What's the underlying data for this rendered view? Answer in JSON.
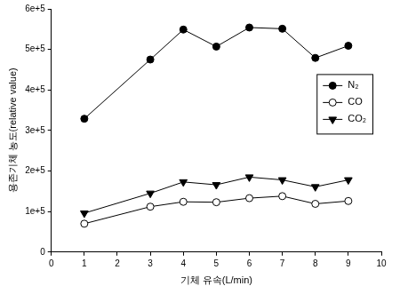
{
  "chart_data": {
    "type": "line",
    "x_label": "기체 유속(L/min)",
    "y_label": "용존기체 농도(relative value)",
    "x": [
      1,
      3,
      4,
      5,
      6,
      7,
      8,
      9
    ],
    "series": [
      {
        "name": "N₂",
        "color": "#000000",
        "marker": "filled_circle",
        "values": [
          329000,
          475000,
          549000,
          507000,
          554000,
          551000,
          479000,
          509000
        ]
      },
      {
        "name": "CO",
        "color": "#000000",
        "marker": "open_circle",
        "values": [
          70000,
          112000,
          124000,
          123000,
          133000,
          138000,
          119000,
          126000
        ]
      },
      {
        "name": "CO₂",
        "color": "#000000",
        "marker": "triangle_down",
        "values": [
          96000,
          145000,
          173000,
          166000,
          185000,
          178000,
          161000,
          178000
        ]
      }
    ],
    "xlim": [
      0,
      10
    ],
    "xticks": [
      0,
      1,
      2,
      3,
      4,
      5,
      6,
      7,
      8,
      9,
      10
    ],
    "ylim": [
      0,
      600000
    ],
    "yticks": [
      0,
      {
        "value": 100000,
        "label": "1e+5"
      },
      {
        "value": 200000,
        "label": "2e+5"
      },
      {
        "value": 300000,
        "label": "3e+5"
      },
      {
        "value": 400000,
        "label": "4e+5"
      },
      {
        "value": 500000,
        "label": "5e+5"
      },
      {
        "value": 600000,
        "label": "6e+5"
      }
    ],
    "grid": false,
    "legend": "right"
  }
}
